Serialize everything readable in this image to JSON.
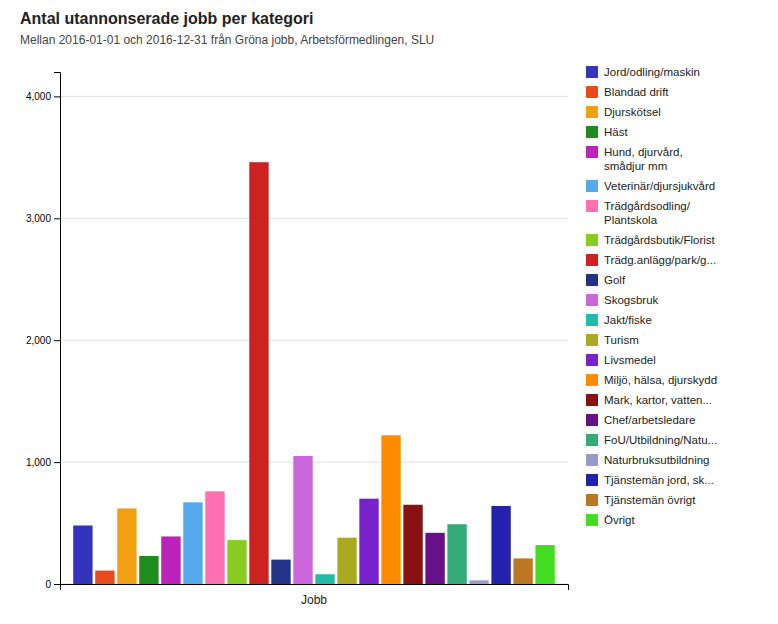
{
  "chart_data": {
    "type": "bar",
    "title": "Antal utannonserade jobb per kategori",
    "subtitle": "Mellan 2016-01-01 och 2016-12-31 från Gröna jobb, Arbetsförmedlingen, SLU",
    "xlabel": "Jobb",
    "categories": [
      "Jord/odling/maskin",
      "Blandad drift",
      "Djurskötsel",
      "Häst",
      "Hund, djurvård,\nsmådjur mm",
      "Veterinär/djursjukvård",
      "Trädgårdsodling/\nPlantskola",
      "Trädgårdsbutik/Florist",
      "Trädg.anlägg/park/g...",
      "Golf",
      "Skogsbruk",
      "Jakt/fiske",
      "Turism",
      "Livsmedel",
      "Miljö, hälsa, djurskydd",
      "Mark, kartor, vatten...",
      "Chef/arbetsledare",
      "FoU/Utbildning/Natu...",
      "Naturbruksutbildning",
      "Tjänstemän jord, sk...",
      "Tjänstemän övrigt",
      "Övrigt"
    ],
    "values": [
      480,
      110,
      620,
      230,
      390,
      670,
      760,
      360,
      3460,
      200,
      1050,
      80,
      380,
      700,
      1220,
      650,
      420,
      490,
      30,
      640,
      210,
      320
    ],
    "colors": [
      "#3333bb",
      "#e84a1a",
      "#f0a010",
      "#1e8c1e",
      "#bb22bb",
      "#55aaee",
      "#ff70b0",
      "#88cc22",
      "#cc2222",
      "#223388",
      "#cc66dd",
      "#22bbaa",
      "#aaaa22",
      "#7722cc",
      "#ff8c00",
      "#881111",
      "#661188",
      "#33aa77",
      "#9999cc",
      "#2222aa",
      "#bb7722",
      "#44dd22"
    ],
    "ylim": [
      0,
      4200
    ],
    "yticks": [
      0,
      {
        "value": 1000,
        "label": "1,000"
      },
      {
        "value": 2000,
        "label": "2,000"
      },
      {
        "value": 3000,
        "label": "3,000"
      },
      {
        "value": 4000,
        "label": "4,000"
      }
    ],
    "grid": true,
    "legend": "right"
  }
}
